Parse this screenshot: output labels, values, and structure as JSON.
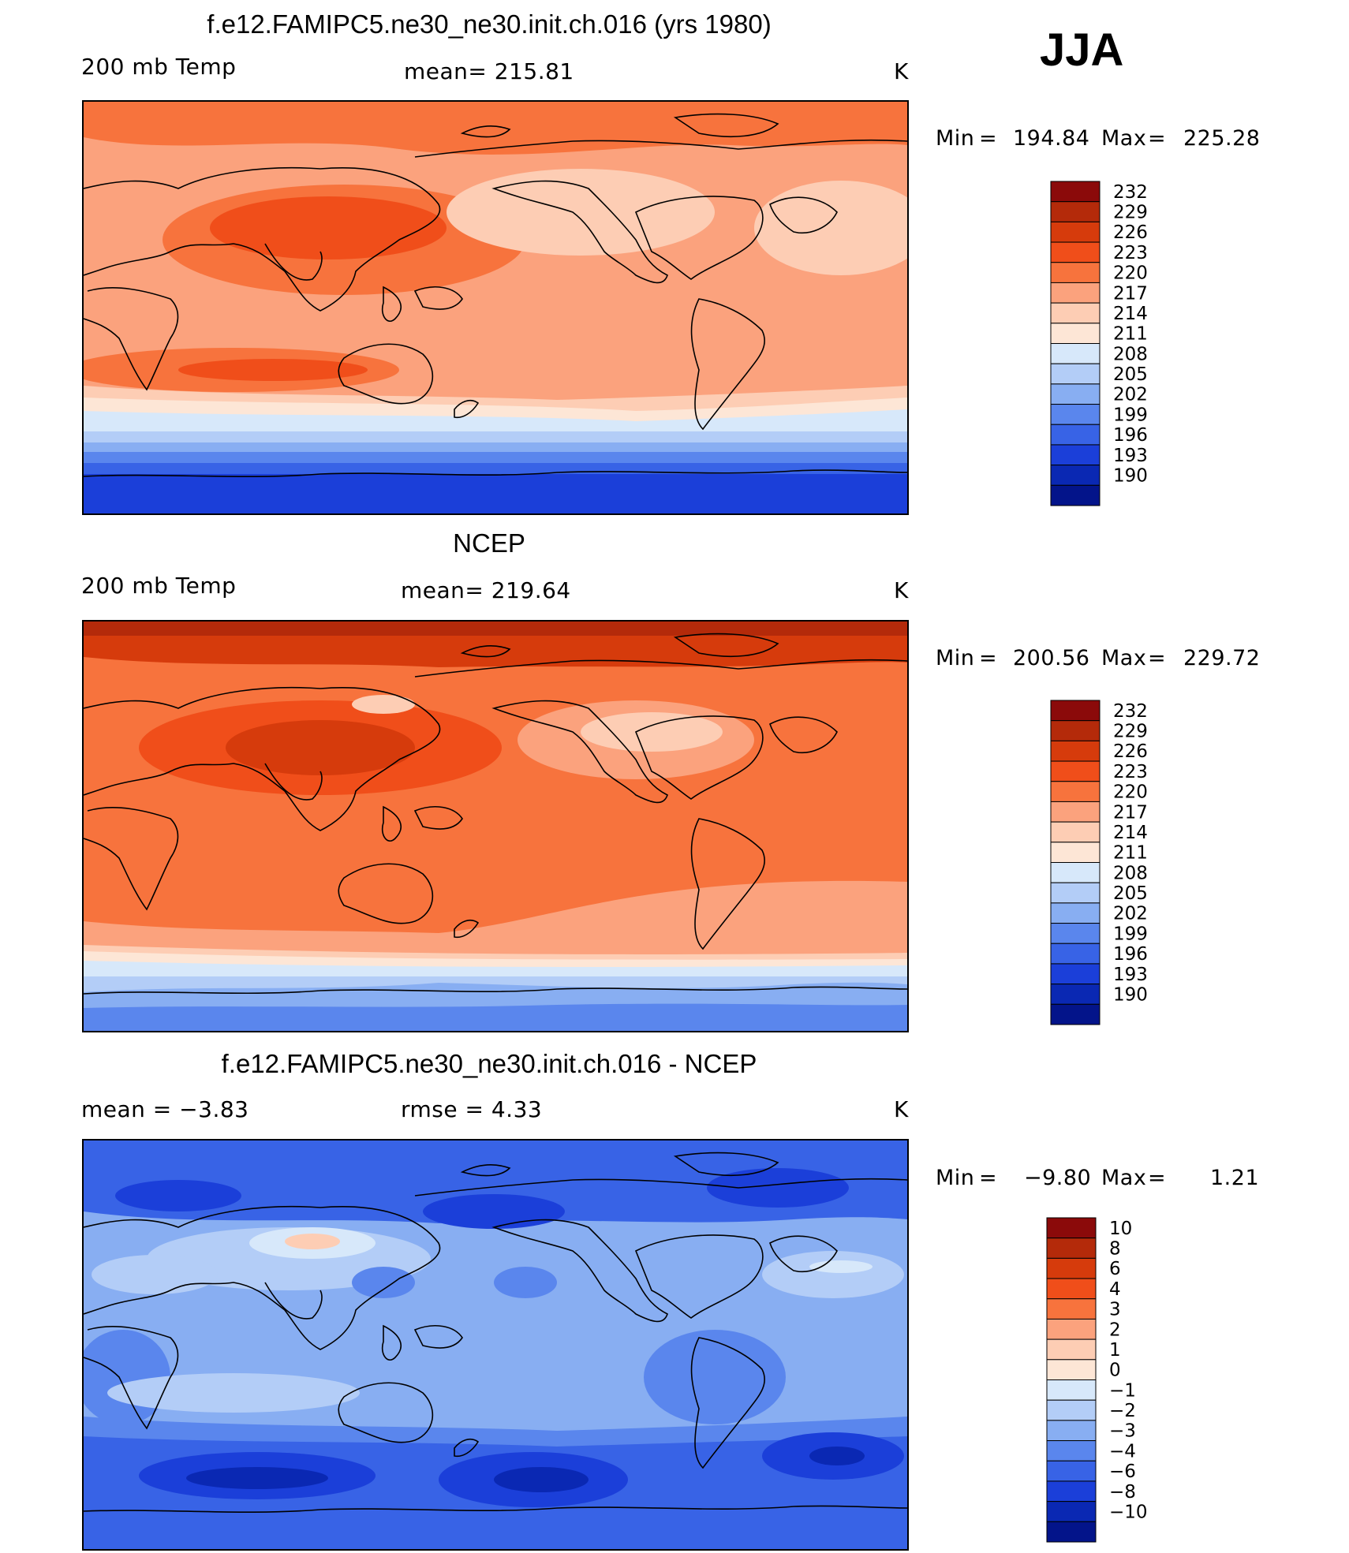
{
  "season": "JJA",
  "panels": [
    {
      "id": "model",
      "title": "f.e12.FAMIPC5.ne30_ne30.init.ch.016 (yrs 1980)",
      "left_label": "200 mb Temp",
      "center_label": "mean= 215.81",
      "units": "K",
      "min_label": "Min",
      "min_value": "194.84",
      "max_label": "Max",
      "max_value": "225.28",
      "colorbar": {
        "labels": [
          "232",
          "229",
          "226",
          "223",
          "220",
          "217",
          "214",
          "211",
          "208",
          "205",
          "202",
          "199",
          "196",
          "193",
          "190"
        ],
        "colors": [
          "#8b0a0a",
          "#b42a0a",
          "#d63b0c",
          "#f04e1a",
          "#f7733d",
          "#fba27d",
          "#fdcdb4",
          "#fde6d6",
          "#d7e8fa",
          "#b3cdf7",
          "#88aef2",
          "#5a86ed",
          "#3863e6",
          "#1b3fd9",
          "#0a28b3",
          "#03148a"
        ]
      }
    },
    {
      "id": "obs",
      "title": "NCEP",
      "left_label": "200 mb Temp",
      "center_label": "mean= 219.64",
      "units": "K",
      "min_label": "Min",
      "min_value": "200.56",
      "max_label": "Max",
      "max_value": "229.72",
      "colorbar": {
        "labels": [
          "232",
          "229",
          "226",
          "223",
          "220",
          "217",
          "214",
          "211",
          "208",
          "205",
          "202",
          "199",
          "196",
          "193",
          "190"
        ],
        "colors": [
          "#8b0a0a",
          "#b42a0a",
          "#d63b0c",
          "#f04e1a",
          "#f7733d",
          "#fba27d",
          "#fdcdb4",
          "#fde6d6",
          "#d7e8fa",
          "#b3cdf7",
          "#88aef2",
          "#5a86ed",
          "#3863e6",
          "#1b3fd9",
          "#0a28b3",
          "#03148a"
        ]
      }
    },
    {
      "id": "diff",
      "title": "f.e12.FAMIPC5.ne30_ne30.init.ch.016 - NCEP",
      "left_label": "mean =    −3.83",
      "center_label": "rmse =    4.33",
      "units": "K",
      "min_label": "Min",
      "min_value": "−9.80",
      "max_label": "Max",
      "max_value": "1.21",
      "colorbar": {
        "labels": [
          "10",
          "8",
          "6",
          "4",
          "3",
          "2",
          "1",
          "0",
          "−1",
          "−2",
          "−3",
          "−4",
          "−6",
          "−8",
          "−10"
        ],
        "colors": [
          "#8b0a0a",
          "#b42a0a",
          "#d63b0c",
          "#f04e1a",
          "#f7733d",
          "#fba27d",
          "#fdcdb4",
          "#fde6d6",
          "#d7e8fa",
          "#b3cdf7",
          "#88aef2",
          "#5a86ed",
          "#3863e6",
          "#1b3fd9",
          "#0a28b3",
          "#03148a"
        ]
      }
    }
  ]
}
